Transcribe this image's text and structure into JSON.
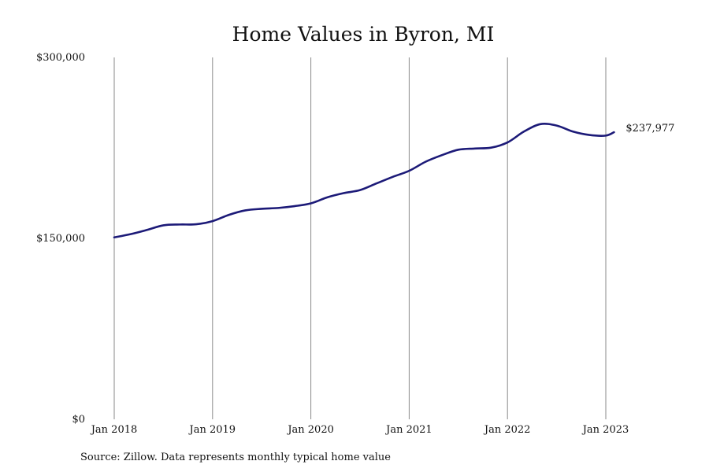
{
  "chart_data": {
    "type": "line",
    "title": "Home Values in Byron, MI",
    "source": "Source: Zillow. Data represents monthly typical home value",
    "xlabel": "",
    "ylabel": "",
    "ylim": [
      0,
      300000
    ],
    "y_ticks": [
      {
        "value": 0,
        "label": "$0"
      },
      {
        "value": 150000,
        "label": "$150,000"
      },
      {
        "value": 300000,
        "label": "$300,000"
      }
    ],
    "x_ticks": [
      {
        "value": "2018-01",
        "label": "Jan 2018"
      },
      {
        "value": "2019-01",
        "label": "Jan 2019"
      },
      {
        "value": "2020-01",
        "label": "Jan 2020"
      },
      {
        "value": "2021-01",
        "label": "Jan 2021"
      },
      {
        "value": "2022-01",
        "label": "Jan 2022"
      },
      {
        "value": "2023-01",
        "label": "Jan 2023"
      }
    ],
    "grid": {
      "vertical": true,
      "horizontal": false
    },
    "legend": "none",
    "series": [
      {
        "color": "#1c1a78",
        "end_label": "$237,977",
        "points": [
          {
            "x": "2018-01",
            "y": 150800
          },
          {
            "x": "2018-03",
            "y": 153500
          },
          {
            "x": "2018-05",
            "y": 157000
          },
          {
            "x": "2018-07",
            "y": 160800
          },
          {
            "x": "2018-09",
            "y": 161500
          },
          {
            "x": "2018-11",
            "y": 161700
          },
          {
            "x": "2019-01",
            "y": 164300
          },
          {
            "x": "2019-03",
            "y": 169500
          },
          {
            "x": "2019-05",
            "y": 173200
          },
          {
            "x": "2019-07",
            "y": 174500
          },
          {
            "x": "2019-09",
            "y": 175200
          },
          {
            "x": "2019-11",
            "y": 176700
          },
          {
            "x": "2020-01",
            "y": 179000
          },
          {
            "x": "2020-03",
            "y": 184000
          },
          {
            "x": "2020-05",
            "y": 187500
          },
          {
            "x": "2020-07",
            "y": 190000
          },
          {
            "x": "2020-09",
            "y": 195500
          },
          {
            "x": "2020-11",
            "y": 201000
          },
          {
            "x": "2021-01",
            "y": 206000
          },
          {
            "x": "2021-03",
            "y": 213500
          },
          {
            "x": "2021-05",
            "y": 219000
          },
          {
            "x": "2021-07",
            "y": 223500
          },
          {
            "x": "2021-09",
            "y": 224500
          },
          {
            "x": "2021-11",
            "y": 225200
          },
          {
            "x": "2022-01",
            "y": 229500
          },
          {
            "x": "2022-03",
            "y": 238500
          },
          {
            "x": "2022-05",
            "y": 244700
          },
          {
            "x": "2022-07",
            "y": 243500
          },
          {
            "x": "2022-09",
            "y": 238500
          },
          {
            "x": "2022-11",
            "y": 235700
          },
          {
            "x": "2023-01",
            "y": 235200
          },
          {
            "x": "2023-02",
            "y": 237977
          }
        ]
      }
    ]
  }
}
